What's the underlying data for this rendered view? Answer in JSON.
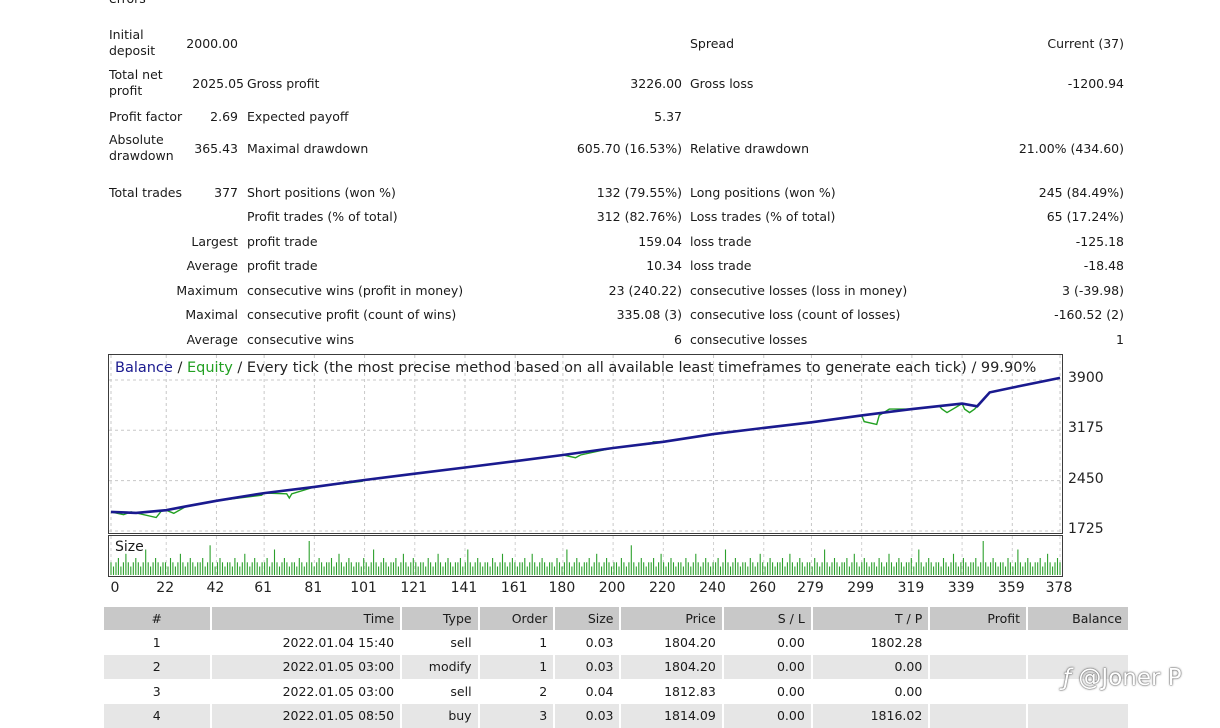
{
  "top_cut": "errors",
  "stats": {
    "initial_deposit_label": "Initial deposit",
    "initial_deposit": "2000.00",
    "spread_label": "Spread",
    "spread": "Current (37)",
    "total_net_profit_label": "Total net profit",
    "total_net_profit": "2025.05",
    "gross_profit_label": "Gross profit",
    "gross_profit": "3226.00",
    "gross_loss_label": "Gross loss",
    "gross_loss": "-1200.94",
    "profit_factor_label": "Profit factor",
    "profit_factor": "2.69",
    "expected_payoff_label": "Expected payoff",
    "expected_payoff": "5.37",
    "absolute_drawdown_label": "Absolute drawdown",
    "absolute_drawdown": "365.43",
    "maximal_drawdown_label": "Maximal drawdown",
    "maximal_drawdown": "605.70 (16.53%)",
    "relative_drawdown_label": "Relative drawdown",
    "relative_drawdown": "21.00% (434.60)",
    "total_trades_label": "Total trades",
    "total_trades": "377",
    "short_positions_label": "Short positions (won %)",
    "short_positions": "132 (79.55%)",
    "long_positions_label": "Long positions (won %)",
    "long_positions": "245 (84.49%)",
    "profit_trades_label": "Profit trades (% of total)",
    "profit_trades": "312 (82.76%)",
    "loss_trades_label": "Loss trades (% of total)",
    "loss_trades": "65 (17.24%)",
    "largest_label": "Largest",
    "largest_profit_label": "profit trade",
    "largest_profit": "159.04",
    "largest_loss_label": "loss trade",
    "largest_loss": "-125.18",
    "average_label": "Average",
    "average_profit_label": "profit trade",
    "average_profit": "10.34",
    "average_loss_label": "loss trade",
    "average_loss": "-18.48",
    "maximum_label": "Maximum",
    "max_cons_wins_label": "consecutive wins (profit in money)",
    "max_cons_wins": "23 (240.22)",
    "max_cons_losses_label": "consecutive losses (loss in money)",
    "max_cons_losses": "3 (-39.98)",
    "maximal_label": "Maximal",
    "maximal_cons_profit_label": "consecutive profit (count of wins)",
    "maximal_cons_profit": "335.08 (3)",
    "maximal_cons_loss_label": "consecutive loss (count of losses)",
    "maximal_cons_loss": "-160.52 (2)",
    "average2_label": "Average",
    "avg_cons_wins_label": "consecutive wins",
    "avg_cons_wins": "6",
    "avg_cons_losses_label": "consecutive losses",
    "avg_cons_losses": "1"
  },
  "chart_data": {
    "type": "line",
    "title_balance": "Balance",
    "title_sep": " / ",
    "title_equity": "Equity",
    "title_rest": " / Every tick (the most precise method based on all available least timeframes to generate each tick) / 99.90%",
    "size_label": "Size",
    "y_ticks": [
      "3900",
      "3175",
      "2450",
      "1725"
    ],
    "x_ticks": [
      "0",
      "22",
      "42",
      "61",
      "81",
      "101",
      "121",
      "141",
      "161",
      "180",
      "200",
      "220",
      "240",
      "260",
      "279",
      "299",
      "319",
      "339",
      "359",
      "378"
    ],
    "ylim": [
      1725,
      4000
    ],
    "xlim": [
      0,
      378
    ],
    "series": [
      {
        "name": "Balance",
        "color": "#1a1a8f",
        "x": [
          0,
          10,
          22,
          30,
          42,
          61,
          81,
          101,
          121,
          141,
          161,
          180,
          200,
          220,
          240,
          260,
          279,
          299,
          319,
          339,
          345,
          350,
          359,
          378
        ],
        "y": [
          2000,
          1985,
          2025,
          2080,
          2160,
          2270,
          2360,
          2460,
          2550,
          2640,
          2730,
          2820,
          2920,
          3010,
          3120,
          3210,
          3290,
          3390,
          3480,
          3560,
          3520,
          3720,
          3790,
          3930
        ]
      },
      {
        "name": "Equity",
        "color": "#22a022",
        "x": [
          0,
          5,
          8,
          10,
          18,
          20,
          22,
          25,
          30,
          42,
          60,
          61,
          70,
          71,
          72,
          81,
          100,
          101,
          121,
          141,
          161,
          180,
          185,
          187,
          200,
          215,
          216,
          220,
          240,
          260,
          279,
          299,
          300,
          305,
          306,
          310,
          319,
          330,
          331,
          333,
          339,
          340,
          342,
          344,
          345,
          350,
          359,
          378
        ],
        "y": [
          2000,
          1960,
          2000,
          1985,
          1920,
          2010,
          2025,
          1980,
          2080,
          2160,
          2240,
          2270,
          2260,
          2200,
          2260,
          2360,
          2440,
          2460,
          2550,
          2640,
          2730,
          2820,
          2780,
          2820,
          2920,
          2980,
          3010,
          3010,
          3120,
          3210,
          3290,
          3390,
          3300,
          3260,
          3390,
          3480,
          3480,
          3520,
          3480,
          3430,
          3560,
          3480,
          3430,
          3480,
          3520,
          3720,
          3790,
          3930
        ]
      }
    ],
    "size_values": [
      3,
      2,
      3,
      4,
      2,
      3,
      5,
      3,
      2,
      3,
      4,
      3,
      2,
      3,
      6,
      3,
      2,
      3,
      4,
      3,
      2,
      3,
      3,
      2,
      4,
      3,
      2,
      3,
      5,
      3,
      2,
      3,
      4,
      3,
      2,
      3,
      3,
      4,
      2,
      3,
      7,
      3,
      2,
      3,
      4,
      3,
      2,
      3,
      3,
      2,
      4,
      3,
      2,
      3,
      5,
      3,
      2,
      3,
      4,
      3,
      2,
      3,
      3,
      4,
      2,
      3,
      6,
      3,
      2,
      3,
      4,
      3,
      2,
      3,
      3,
      2,
      4,
      3,
      2,
      3,
      8,
      3,
      2,
      3,
      4,
      3,
      2,
      3,
      3,
      4,
      2,
      3,
      5,
      3,
      2,
      3,
      4,
      3,
      2,
      3,
      3,
      2,
      4,
      3,
      2,
      3,
      6,
      3,
      2,
      3,
      4,
      3,
      2,
      3,
      3,
      4,
      2,
      3,
      5,
      3,
      2,
      3,
      4,
      3,
      2,
      3,
      3,
      2,
      4,
      3,
      2,
      3,
      5,
      3,
      2,
      3,
      4,
      3,
      2,
      3,
      3,
      4,
      2,
      3,
      6,
      3,
      2,
      3,
      4,
      3,
      2,
      3,
      3,
      2,
      4,
      3,
      2,
      3,
      5,
      3,
      2,
      3,
      4,
      3,
      2,
      3,
      3,
      4,
      2,
      3,
      5,
      3,
      2,
      3,
      4,
      3,
      2,
      3,
      3,
      2,
      4,
      3,
      2,
      3,
      6,
      3,
      2,
      3,
      4,
      3,
      2,
      3,
      3,
      4,
      2,
      3,
      5,
      3,
      2,
      3,
      4,
      3,
      2,
      3,
      3,
      2,
      4,
      3,
      2,
      3,
      7,
      3,
      2,
      3,
      4,
      3,
      2,
      3,
      3,
      4,
      2,
      3,
      5,
      3,
      2,
      3,
      4,
      3,
      2,
      3,
      3,
      2,
      4,
      3,
      2,
      3,
      5,
      3,
      2,
      3,
      4,
      3,
      2,
      3,
      3,
      4,
      2,
      3,
      6,
      3,
      2,
      3,
      4,
      3,
      2,
      3,
      3,
      2,
      4,
      3,
      2,
      3,
      5,
      3,
      2,
      3,
      4,
      3,
      2,
      3,
      3,
      4,
      2,
      3,
      5,
      3,
      2,
      3,
      4,
      3,
      2,
      3,
      3,
      2,
      4,
      3,
      2,
      3,
      6,
      3,
      2,
      3,
      4,
      3,
      2,
      3,
      3,
      4,
      2,
      3,
      5,
      3,
      2,
      3,
      4,
      3,
      2,
      3,
      3,
      2,
      4,
      3,
      2,
      3,
      5,
      3,
      2,
      3,
      4,
      3,
      2,
      3,
      3,
      4,
      2,
      3,
      6,
      3,
      2,
      3,
      4,
      3,
      2,
      3,
      3,
      2,
      4,
      3,
      2,
      3,
      5,
      3,
      2,
      3,
      4,
      3,
      2,
      3,
      3,
      4,
      2,
      3,
      8,
      3,
      2,
      3,
      4,
      3,
      2,
      3,
      3,
      2,
      4,
      3,
      2,
      3,
      6,
      3,
      2,
      3,
      4,
      3,
      2,
      3,
      3,
      4,
      2,
      3,
      5,
      3,
      2,
      3,
      4,
      3
    ]
  },
  "table": {
    "headers": [
      "#",
      "Time",
      "Type",
      "Order",
      "Size",
      "Price",
      "S / L",
      "T / P",
      "Profit",
      "Balance"
    ],
    "rows": [
      [
        "1",
        "2022.01.04 15:40",
        "sell",
        "1",
        "0.03",
        "1804.20",
        "0.00",
        "1802.28",
        "",
        ""
      ],
      [
        "2",
        "2022.01.05 03:00",
        "modify",
        "1",
        "0.03",
        "1804.20",
        "0.00",
        "0.00",
        "",
        ""
      ],
      [
        "3",
        "2022.01.05 03:00",
        "sell",
        "2",
        "0.04",
        "1812.83",
        "0.00",
        "0.00",
        "",
        ""
      ],
      [
        "4",
        "2022.01.05 08:50",
        "buy",
        "3",
        "0.03",
        "1814.09",
        "0.00",
        "1816.02",
        "",
        ""
      ]
    ]
  },
  "watermark": "@Joner P"
}
